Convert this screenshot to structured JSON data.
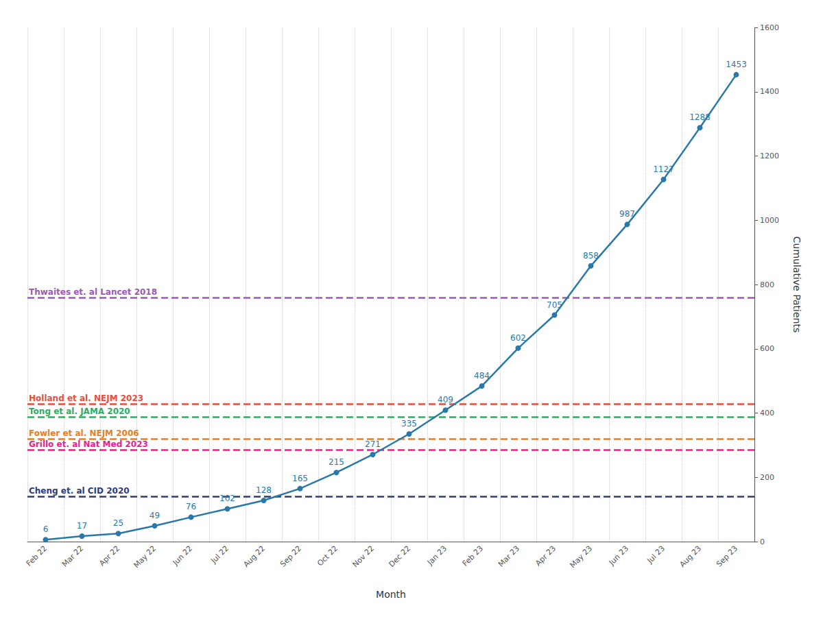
{
  "chart_data": {
    "type": "line",
    "categories": [
      "Feb 22",
      "Mar 22",
      "Apr 22",
      "May 22",
      "Jun 22",
      "Jul 22",
      "Aug 22",
      "Sep 22",
      "Oct 22",
      "Nov 22",
      "Dec 22",
      "Jan 23",
      "Feb 23",
      "Mar 23",
      "Apr 23",
      "May 23",
      "Jun 23",
      "Jul 23",
      "Aug 23",
      "Sep 23"
    ],
    "values": [
      6,
      17,
      25,
      49,
      76,
      102,
      128,
      165,
      215,
      271,
      335,
      409,
      484,
      602,
      705,
      858,
      987,
      1127,
      1288,
      1453
    ],
    "color": "#2878a8",
    "marker": "circle",
    "data_labels": true,
    "reference_lines": [
      {
        "label": "Thwaites et. al Lancet 2018",
        "value": 760,
        "color": "#9b59b6",
        "line_style": "dashed"
      },
      {
        "label": "Holland et al. NEJM 2023",
        "value": 428,
        "color": "#e74c3c",
        "line_style": "dashed"
      },
      {
        "label": "Tong et al. JAMA 2020",
        "value": 388,
        "color": "#27ae60",
        "line_style": "dashed"
      },
      {
        "label": "Fowler et al. NEJM 2006",
        "value": 320,
        "color": "#e67e22",
        "line_style": "dashed"
      },
      {
        "label": "Grillo et. al Nat Med 2023",
        "value": 285,
        "color": "#e91e8c",
        "line_style": "dashed"
      },
      {
        "label": "Cheng et. al CID 2020",
        "value": 140,
        "color": "#2c3e7a",
        "line_style": "dashed"
      }
    ],
    "xlabel": "Month",
    "ylabel": "Cumulative Patients",
    "ylim": [
      0,
      1600
    ],
    "yticks": [
      0,
      200,
      400,
      600,
      800,
      1000,
      1200,
      1400,
      1600
    ],
    "grid": "x"
  }
}
